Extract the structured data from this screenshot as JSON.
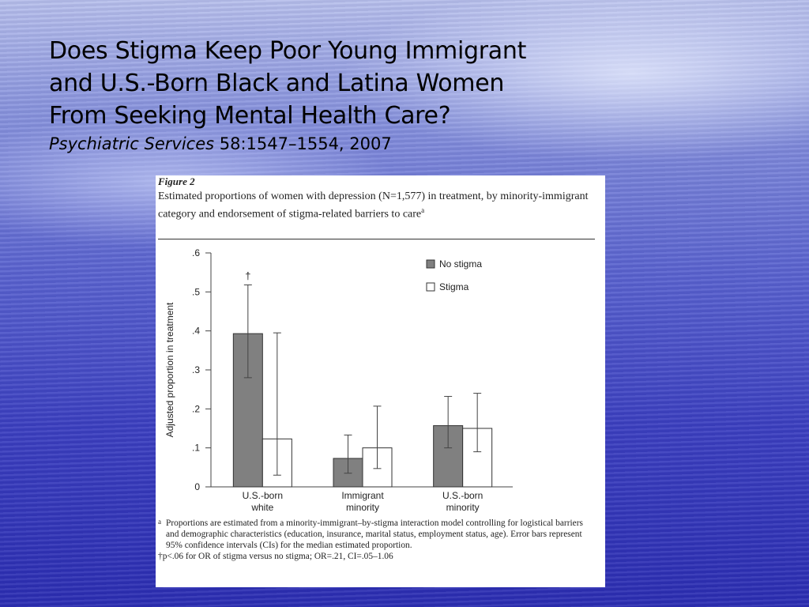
{
  "slide": {
    "title_lines": [
      "Does Stigma Keep Poor Young Immigrant",
      "and U.S.-Born Black and Latina Women",
      "From Seeking Mental Health Care?"
    ],
    "citation_journal": "Psychiatric Services",
    "citation_rest": " 58:1547–1554, 2007"
  },
  "figure": {
    "label": "Figure 2",
    "caption": "Estimated proportions of women with depression (N=1,577) in treatment, by minority-immigrant category and endorsement of stigma-related barriers to care",
    "caption_mark": "a",
    "footnote_a_mark": "a",
    "footnote_a": "Proportions are estimated from a minority-immigrant–by-stigma interaction model controlling for logistical barriers and demographic characteristics (education, insurance, marital status, employment status, age). Error bars represent 95% confidence intervals (CIs) for the median estimated proportion.",
    "footnote_dagger": "†p<.06 for OR of stigma versus no stigma; OR=.21, CI=.05–1.06"
  },
  "chart_data": {
    "type": "bar",
    "ylabel": "Adjusted proportion in treatment",
    "xlabel": "",
    "ylim": [
      0,
      0.6
    ],
    "yticks": [
      0,
      0.1,
      0.2,
      0.3,
      0.4,
      0.5,
      0.6
    ],
    "ytick_labels": [
      "0",
      ".1",
      ".2",
      ".3",
      ".4",
      ".5",
      ".6"
    ],
    "categories": [
      "U.S.-born white",
      "Immigrant minority",
      "U.S.-born minority"
    ],
    "category_label_lines": [
      [
        "U.S.-born",
        "white"
      ],
      [
        "Immigrant",
        "minority"
      ],
      [
        "U.S.-born",
        "minority"
      ]
    ],
    "series": [
      {
        "name": "No stigma",
        "color": "#808080",
        "values": [
          0.393,
          0.073,
          0.157
        ],
        "ci_low": [
          0.28,
          0.035,
          0.1
        ],
        "ci_high": [
          0.518,
          0.133,
          0.232
        ]
      },
      {
        "name": "Stigma",
        "color": "#ffffff",
        "values": [
          0.123,
          0.1,
          0.15
        ],
        "ci_low": [
          0.03,
          0.047,
          0.09
        ],
        "ci_high": [
          0.395,
          0.207,
          0.24
        ]
      }
    ],
    "annotations": [
      {
        "text": "†",
        "category": "U.S.-born white",
        "series": "No stigma"
      }
    ],
    "legend_position": "top-right",
    "grid": false
  }
}
